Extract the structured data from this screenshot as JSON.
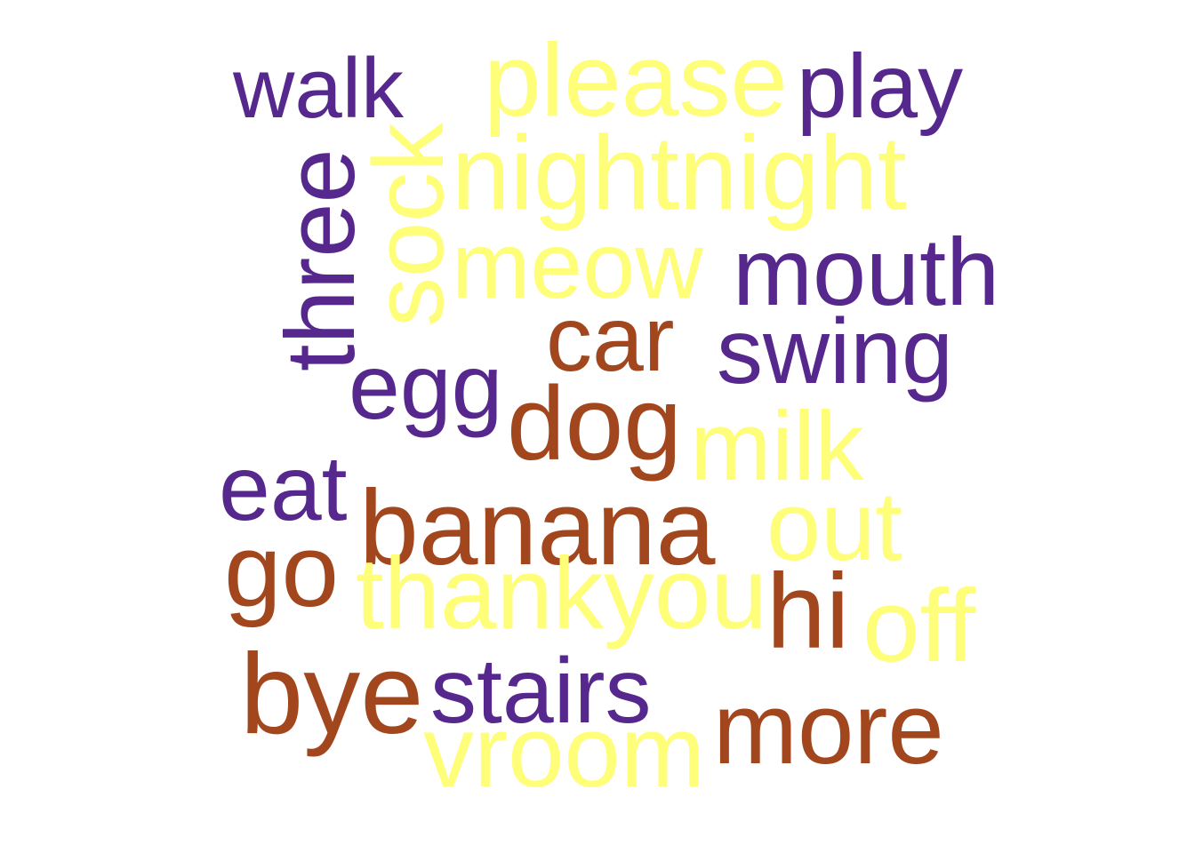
{
  "colors": {
    "purple": "#56288e",
    "yellow": "#fefe78",
    "brown": "#a2461e",
    "background": "#ffffff"
  },
  "words": [
    {
      "id": "walk",
      "text": "walk",
      "color": "purple"
    },
    {
      "id": "please",
      "text": "please",
      "color": "yellow"
    },
    {
      "id": "play",
      "text": "play",
      "color": "purple"
    },
    {
      "id": "sock",
      "text": "sock",
      "color": "yellow"
    },
    {
      "id": "nightnight",
      "text": "nightnight",
      "color": "yellow"
    },
    {
      "id": "three",
      "text": "three",
      "color": "purple"
    },
    {
      "id": "meow",
      "text": "meow",
      "color": "yellow"
    },
    {
      "id": "mouth",
      "text": "mouth",
      "color": "purple"
    },
    {
      "id": "car",
      "text": "car",
      "color": "brown"
    },
    {
      "id": "swing",
      "text": "swing",
      "color": "purple"
    },
    {
      "id": "egg",
      "text": "egg",
      "color": "purple"
    },
    {
      "id": "dog",
      "text": "dog",
      "color": "brown"
    },
    {
      "id": "milk",
      "text": "milk",
      "color": "yellow"
    },
    {
      "id": "eat",
      "text": "eat",
      "color": "purple"
    },
    {
      "id": "banana",
      "text": "banana",
      "color": "brown"
    },
    {
      "id": "out",
      "text": "out",
      "color": "yellow"
    },
    {
      "id": "go",
      "text": "go",
      "color": "brown"
    },
    {
      "id": "thankyou",
      "text": "thankyou",
      "color": "yellow"
    },
    {
      "id": "hi",
      "text": "hi",
      "color": "brown"
    },
    {
      "id": "off",
      "text": "off",
      "color": "yellow"
    },
    {
      "id": "bye",
      "text": "bye",
      "color": "brown"
    },
    {
      "id": "stairs",
      "text": "stairs",
      "color": "purple"
    },
    {
      "id": "more",
      "text": "more",
      "color": "brown"
    },
    {
      "id": "vroom",
      "text": "vroom",
      "color": "yellow"
    }
  ]
}
